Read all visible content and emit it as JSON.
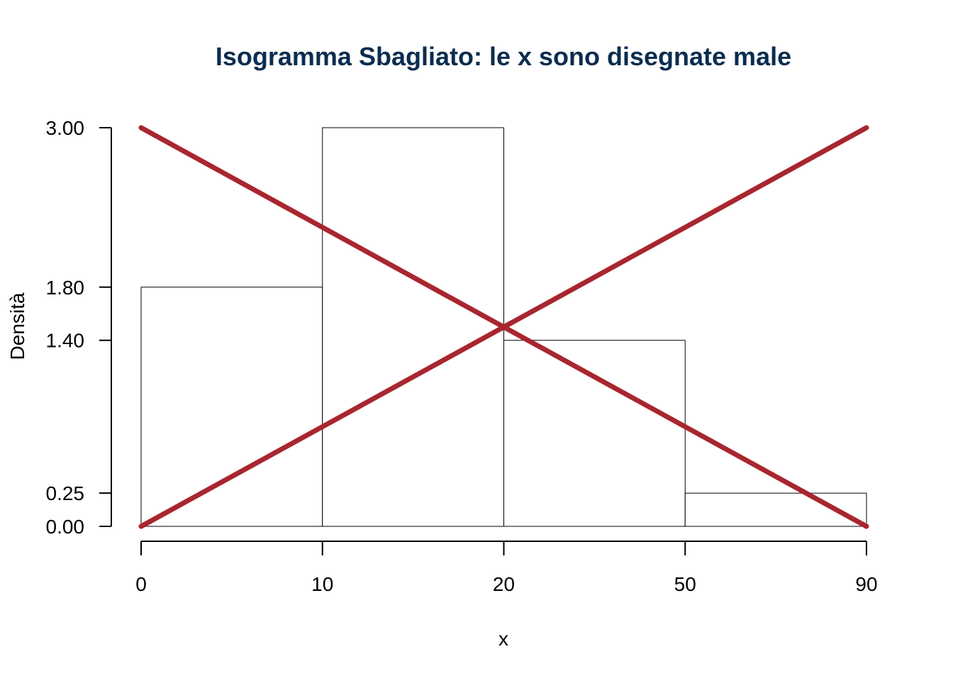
{
  "chart_data": {
    "type": "bar",
    "title": "Isogramma Sbagliato: le x sono disegnate male",
    "xlabel": "x",
    "ylabel": "Densità",
    "categories": [
      "0-10",
      "10-20",
      "20-50",
      "50-90"
    ],
    "x_ticks": [
      "0",
      "10",
      "20",
      "50",
      "90"
    ],
    "values": [
      1.8,
      3.0,
      1.4,
      0.25
    ],
    "y_ticks": [
      "0.00",
      "0.25",
      "1.40",
      "1.80",
      "3.00"
    ],
    "ylim": [
      0,
      3
    ],
    "grid": false,
    "overlay": {
      "description": "red cross over the plot",
      "color": "#A8262F",
      "lines": [
        {
          "from": [
            0,
            3.0
          ],
          "to": [
            4,
            0
          ]
        },
        {
          "from": [
            0,
            0
          ],
          "to": [
            4,
            3.0
          ]
        }
      ]
    },
    "colors": {
      "title": "#0B2D4F",
      "bar_fill": "#ffffff",
      "bar_stroke": "#000000",
      "cross": "#A8262F"
    }
  }
}
